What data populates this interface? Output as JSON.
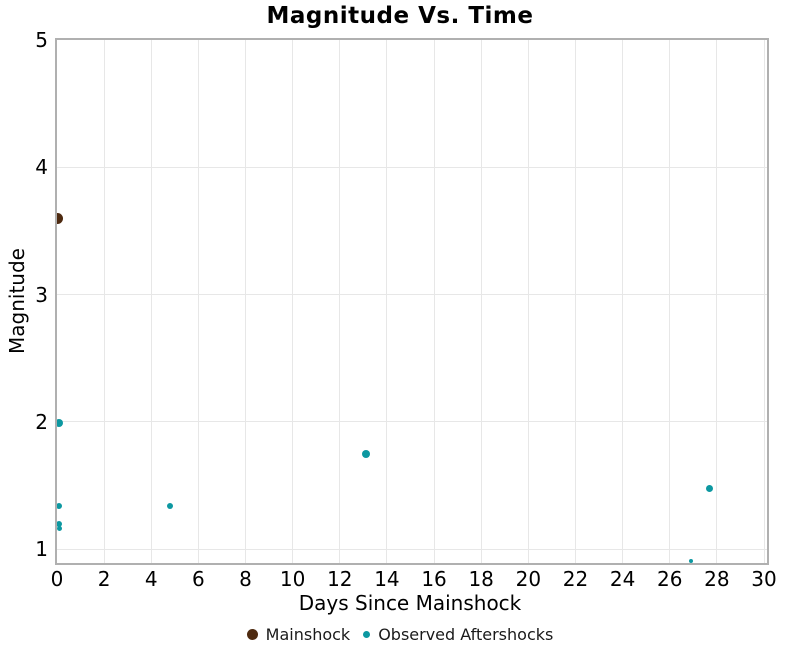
{
  "chart_data": {
    "type": "scatter",
    "title": "Magnitude Vs. Time",
    "xlabel": "Days Since Mainshock",
    "ylabel": "Magnitude",
    "xlim": [
      0,
      30
    ],
    "ylim": [
      0.9,
      5
    ],
    "x_ticks": [
      0,
      2,
      4,
      6,
      8,
      10,
      12,
      14,
      16,
      18,
      20,
      22,
      24,
      26,
      28,
      30
    ],
    "y_ticks": [
      1,
      2,
      3,
      4,
      5
    ],
    "grid": true,
    "legend_position": "bottom-center",
    "series": [
      {
        "name": "Mainshock",
        "color": "#4e2a10",
        "marker_size": 11,
        "points": [
          {
            "x": 0,
            "y": 3.6,
            "size": 11
          }
        ]
      },
      {
        "name": "Observed Aftershocks",
        "color": "#0d98a1",
        "marker_size": 7,
        "points": [
          {
            "x": 0.1,
            "y": 1.99,
            "size": 8
          },
          {
            "x": 0.1,
            "y": 1.34,
            "size": 6
          },
          {
            "x": 0.1,
            "y": 1.2,
            "size": 6
          },
          {
            "x": 0.1,
            "y": 1.16,
            "size": 5
          },
          {
            "x": 4.8,
            "y": 1.34,
            "size": 6
          },
          {
            "x": 13.1,
            "y": 1.75,
            "size": 8
          },
          {
            "x": 26.9,
            "y": 0.91,
            "size": 4
          },
          {
            "x": 27.7,
            "y": 1.48,
            "size": 7
          }
        ]
      }
    ]
  }
}
